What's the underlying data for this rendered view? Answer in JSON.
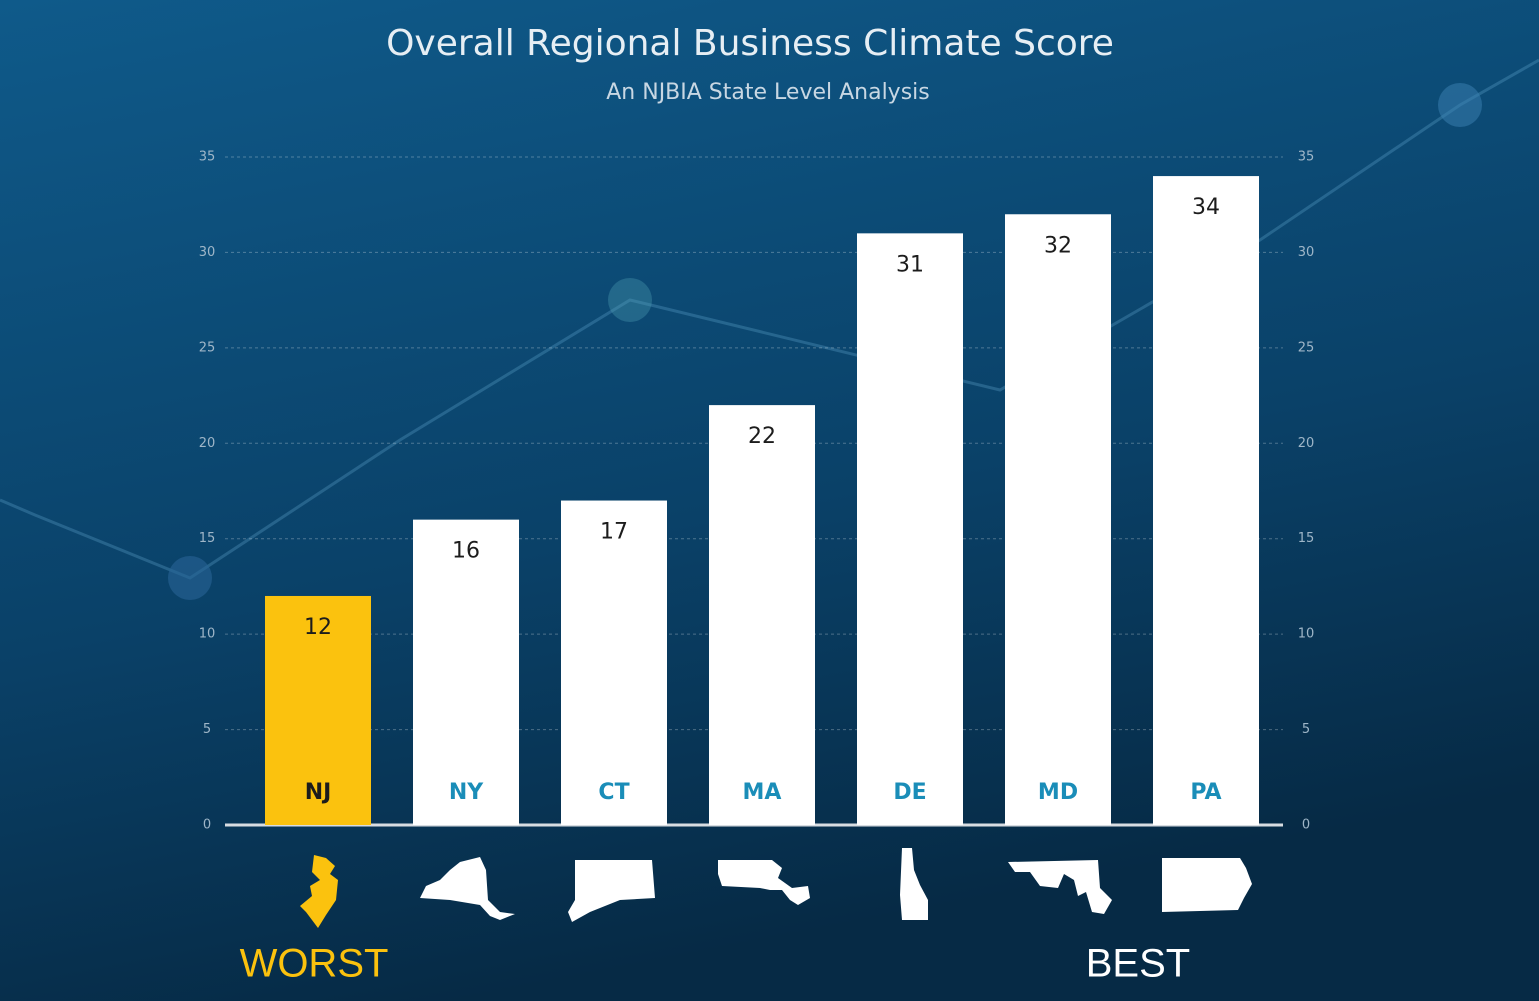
{
  "chart_data": {
    "type": "bar",
    "title": "Overall Regional Business Climate Score",
    "subtitle": "An NJBIA State Level Analysis",
    "categories": [
      "NJ",
      "NY",
      "CT",
      "MA",
      "DE",
      "MD",
      "PA"
    ],
    "values": [
      12,
      16,
      17,
      22,
      31,
      32,
      34
    ],
    "colors": [
      "#fbc20e",
      "#ffffff",
      "#ffffff",
      "#ffffff",
      "#ffffff",
      "#ffffff",
      "#ffffff"
    ],
    "ylim": [
      0,
      35
    ],
    "yticks": [
      0,
      5,
      10,
      15,
      20,
      25,
      30,
      35
    ],
    "y2lim": [
      0,
      35
    ],
    "y2ticks": [
      0,
      5,
      10,
      15,
      20,
      25,
      30,
      35
    ],
    "grid": true,
    "annotations": [
      {
        "text": "WORST",
        "color": "#fbc20e"
      },
      {
        "text": "BEST",
        "color": "#ffffff"
      }
    ]
  }
}
